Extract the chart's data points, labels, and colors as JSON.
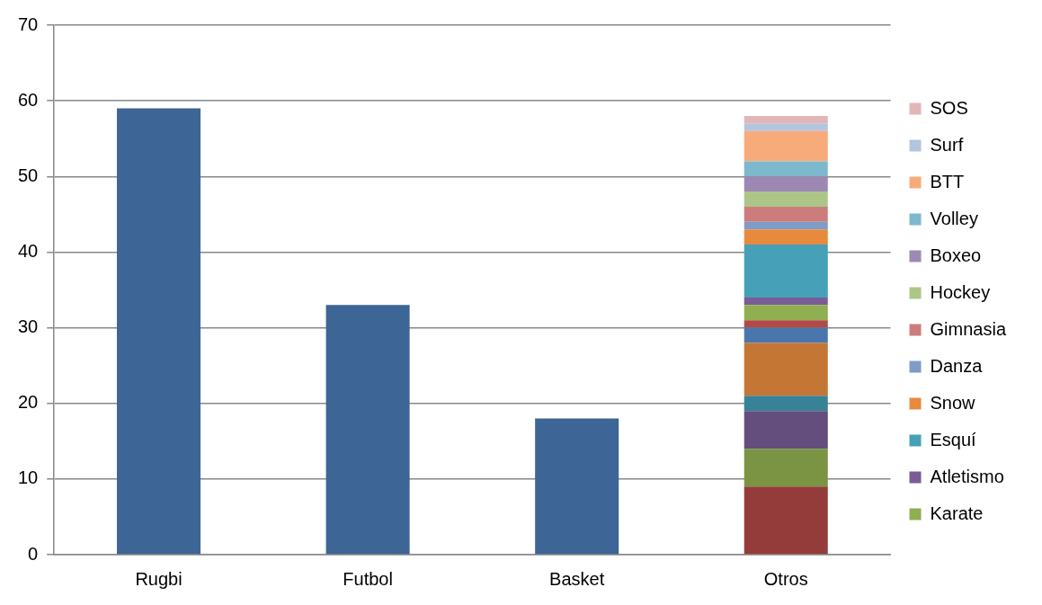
{
  "chart_data": {
    "type": "bar",
    "stacked": true,
    "categories": [
      "Rugbi",
      "Futbol",
      "Basket",
      "Otros"
    ],
    "ylim": [
      0,
      70
    ],
    "yticks": [
      0,
      10,
      20,
      30,
      40,
      50,
      60,
      70
    ],
    "grid": "y",
    "legend": "right",
    "series": [
      {
        "color": "#3d6595",
        "values": [
          59,
          33,
          18,
          null
        ]
      },
      {
        "color": "#943c3a",
        "values": [
          null,
          null,
          null,
          9
        ]
      },
      {
        "color": "#7a9444",
        "values": [
          null,
          null,
          null,
          5
        ]
      },
      {
        "color": "#634e7e",
        "values": [
          null,
          null,
          null,
          5
        ]
      },
      {
        "color": "#378296",
        "values": [
          null,
          null,
          null,
          2
        ]
      },
      {
        "color": "#c47634",
        "values": [
          null,
          null,
          null,
          7
        ]
      },
      {
        "color": "#4a76ae",
        "values": [
          null,
          null,
          null,
          2
        ]
      },
      {
        "color": "#b14a47",
        "values": [
          null,
          null,
          null,
          1
        ]
      },
      {
        "name": "Karate",
        "color": "#8faf50",
        "values": [
          null,
          null,
          null,
          2
        ]
      },
      {
        "name": "Atletismo",
        "color": "#7a5c96",
        "values": [
          null,
          null,
          null,
          1
        ]
      },
      {
        "name": "Esquí",
        "color": "#46a0b8",
        "values": [
          null,
          null,
          null,
          7
        ]
      },
      {
        "name": "Snow",
        "color": "#e88a3e",
        "values": [
          null,
          null,
          null,
          2
        ]
      },
      {
        "name": "Danza",
        "color": "#7f9cc9",
        "values": [
          null,
          null,
          null,
          1
        ]
      },
      {
        "name": "Gimnasia",
        "color": "#cc7d7b",
        "values": [
          null,
          null,
          null,
          2
        ]
      },
      {
        "name": "Hockey",
        "color": "#adc687",
        "values": [
          null,
          null,
          null,
          2
        ]
      },
      {
        "name": "Boxeo",
        "color": "#9d88b3",
        "values": [
          null,
          null,
          null,
          2
        ]
      },
      {
        "name": "Volley",
        "color": "#7db9cd",
        "values": [
          null,
          null,
          null,
          2
        ]
      },
      {
        "name": "BTT",
        "color": "#f8ab7a",
        "values": [
          null,
          null,
          null,
          4
        ]
      },
      {
        "name": "Surf",
        "color": "#b4c4df",
        "values": [
          null,
          null,
          null,
          1
        ]
      },
      {
        "name": "SOS",
        "color": "#e0b7b6",
        "values": [
          null,
          null,
          null,
          1
        ]
      }
    ]
  }
}
